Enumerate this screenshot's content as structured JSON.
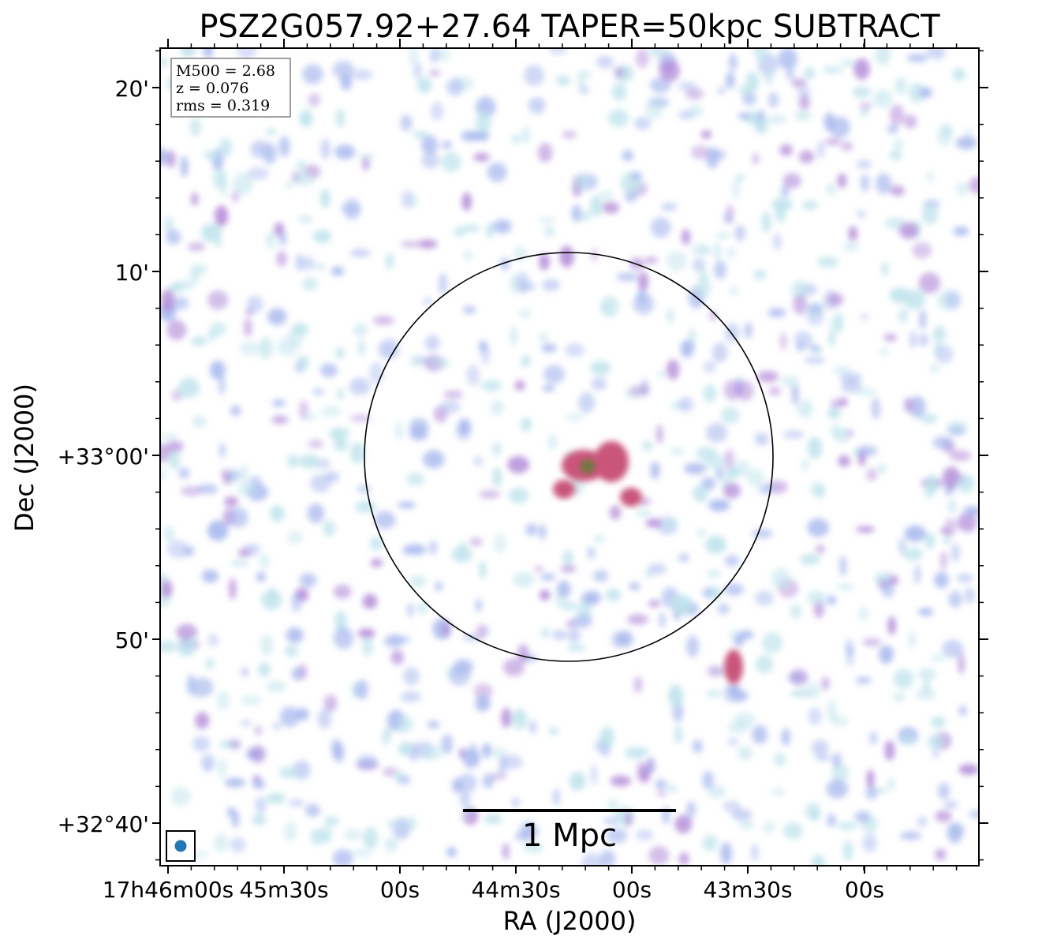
{
  "title": "PSZ2G057.92+27.64 TAPER=50kpc SUBTRACT",
  "axes": {
    "xlabel": "RA (J2000)",
    "ylabel": "Dec (J2000)",
    "xticks": [
      "17h46m00s",
      "45m30s",
      "00s",
      "44m30s",
      "00s",
      "43m30s",
      "00s"
    ],
    "yticks": [
      "20'",
      "10'",
      "+33°00'",
      "50'",
      "+32°40'"
    ]
  },
  "info_box": {
    "lines": [
      "M500 = 2.68",
      "z = 0.076",
      "rms = 0.319"
    ]
  },
  "scale_bar": {
    "label": "1 Mpc"
  },
  "colors": {
    "noise_light": "#bfe3ec",
    "noise_mid": "#a9b9ee",
    "noise_strong": "#b28ad8",
    "peak": "#c9557a",
    "core": "#6a7a3a",
    "beam": "#1f77b4"
  }
}
